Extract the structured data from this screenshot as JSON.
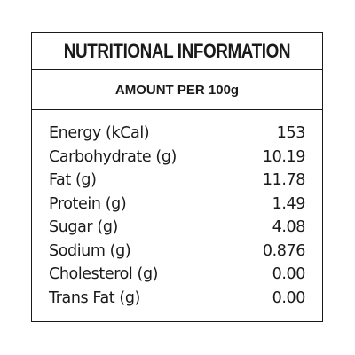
{
  "title": "NUTRITIONAL INFORMATION",
  "subtitle": "AMOUNT PER 100g",
  "rows": [
    {
      "label": "Energy (kCal)",
      "value": "153"
    },
    {
      "label": "Carbohydrate (g)",
      "value": "10.19"
    },
    {
      "label": "Fat (g)",
      "value": "11.78"
    },
    {
      "label": "Protein (g)",
      "value": "1.49"
    },
    {
      "label": "Sugar (g)",
      "value": "4.08"
    },
    {
      "label": "Sodium (g)",
      "value": "0.876"
    },
    {
      "label": "Cholesterol (g)",
      "value": "0.00"
    },
    {
      "label": "Trans Fat (g)",
      "value": "0.00"
    }
  ]
}
